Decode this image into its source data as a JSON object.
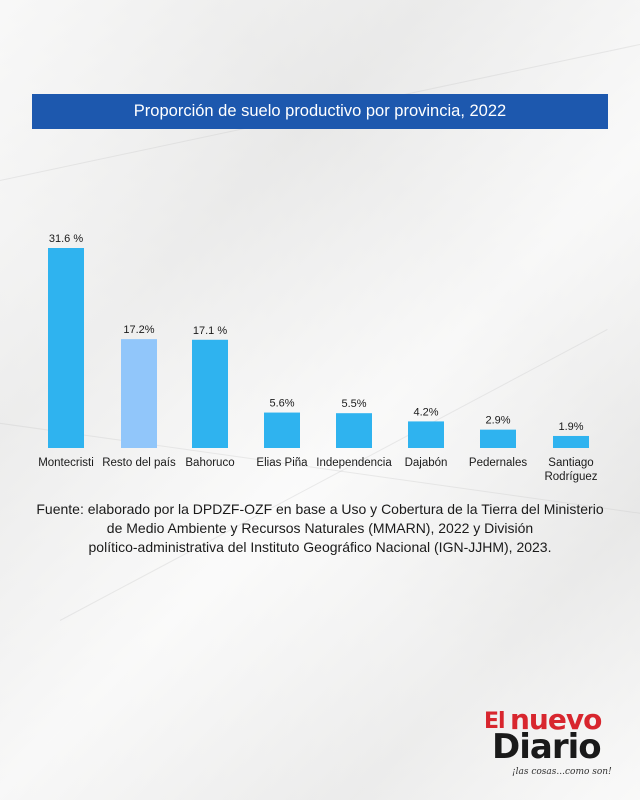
{
  "title": "Proporción de suelo productivo por provincia, 2022",
  "source_lines": [
    "Fuente: elaborado por la DPDZF-OZF en base a Uso y Cobertura de la Tierra del Ministerio",
    "de Medio Ambiente y Recursos Naturales (MMARN), 2022 y División",
    "político-administrativa del Instituto Geográfico Nacional (IGN-JJHM), 2023."
  ],
  "logo": {
    "el": "El",
    "nuevo": "nuevo",
    "diario": "Diario",
    "tagline": "¡las cosas...como son!"
  },
  "colors": {
    "title_bar": "#1d58ae",
    "bar": "#2fb3ef",
    "bar_highlight": "#91c6fa",
    "logo_red": "#d8262e"
  },
  "chart_data": {
    "type": "bar",
    "title": "Proporción de suelo productivo por provincia, 2022",
    "categories": [
      "Montecristi",
      "Resto del país",
      "Bahoruco",
      "Elias Piña",
      "Independencia",
      "Dajabón",
      "Pedernales",
      "Santiago Rodríguez"
    ],
    "values": [
      31.6,
      17.2,
      17.1,
      5.6,
      5.5,
      4.2,
      2.9,
      1.9
    ],
    "data_labels": [
      "31.6 %",
      "17.2%",
      "17.1 %",
      "5.6%",
      "5.5%",
      "4.2%",
      "2.9%",
      "1.9%"
    ],
    "highlight_index": 1,
    "ylim": [
      0,
      31.6
    ],
    "grid": false,
    "legend": "none"
  }
}
